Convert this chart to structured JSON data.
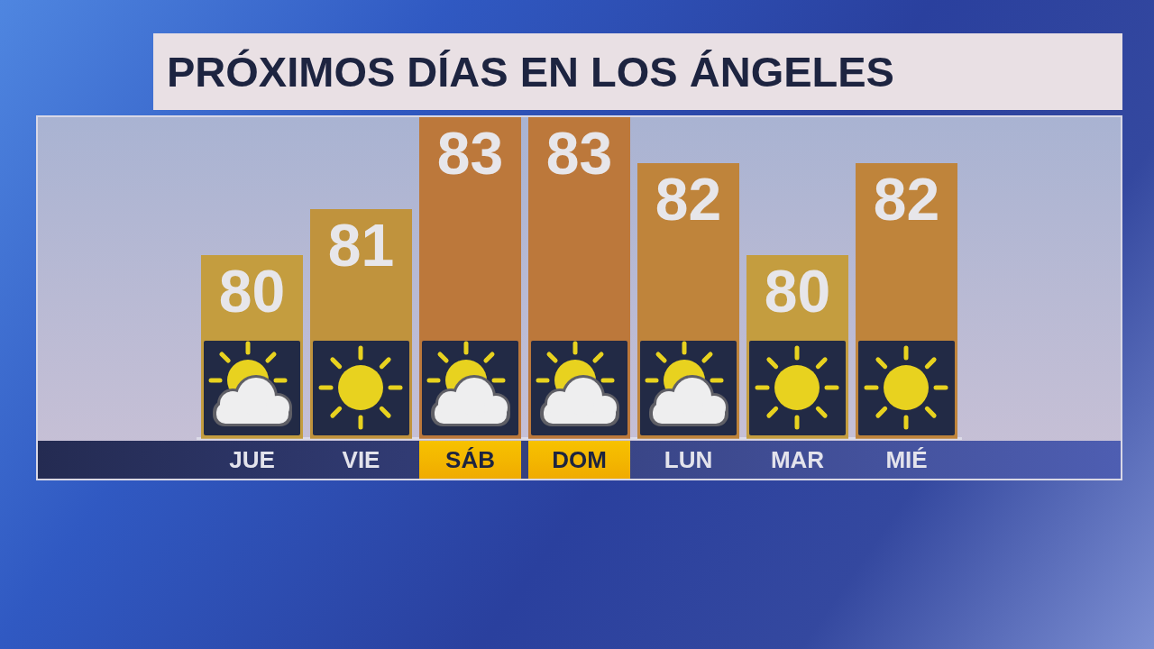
{
  "chart_data": {
    "type": "bar",
    "title": "PRÓXIMOS DÍAS EN LOS ÁNGELES",
    "categories": [
      "JUE",
      "VIE",
      "SÁB",
      "DOM",
      "LUN",
      "MAR",
      "MIÉ"
    ],
    "values": [
      80,
      81,
      83,
      83,
      82,
      80,
      82
    ],
    "colors": [
      "#c49d3f",
      "#c0933d",
      "#bc783b",
      "#bc783b",
      "#bf843b",
      "#c49d3f",
      "#bf843b"
    ],
    "ylim": [
      76,
      83
    ],
    "tick_labels": "x",
    "data_labels": true
  }
}
